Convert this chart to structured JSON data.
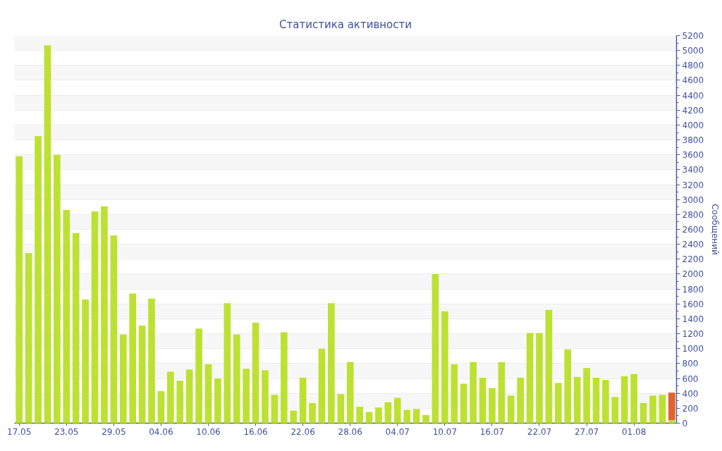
{
  "chart_data": {
    "type": "bar",
    "title": "Статистика активности",
    "ylabel": "Сообщений",
    "categories": [
      "17.05",
      null,
      null,
      null,
      null,
      "23.05",
      null,
      null,
      null,
      null,
      "29.05",
      null,
      null,
      null,
      null,
      "04.06",
      null,
      null,
      null,
      null,
      "10.06",
      null,
      null,
      null,
      null,
      "16.06",
      null,
      null,
      null,
      null,
      "22.06",
      null,
      null,
      null,
      null,
      "28.06",
      null,
      null,
      null,
      null,
      "04.07",
      null,
      null,
      null,
      null,
      "10.07",
      null,
      null,
      null,
      null,
      "16.07",
      null,
      null,
      null,
      null,
      "22.07",
      null,
      null,
      null,
      null,
      "27.07",
      null,
      null,
      null,
      null,
      "01.08",
      null,
      null,
      null,
      null
    ],
    "stacked": true,
    "series": [
      {
        "color": "#bde132",
        "values": [
          3580,
          2280,
          3850,
          5070,
          3600,
          2860,
          2550,
          1660,
          2840,
          2910,
          2520,
          1190,
          1740,
          1310,
          1670,
          430,
          690,
          570,
          720,
          1270,
          790,
          600,
          1610,
          1190,
          730,
          1350,
          710,
          380,
          1220,
          170,
          610,
          270,
          1000,
          1610,
          390,
          820,
          220,
          150,
          210,
          280,
          340,
          180,
          190,
          110,
          2000,
          1500,
          790,
          530,
          820,
          610,
          470,
          820,
          370,
          610,
          1210,
          1210,
          1520,
          540,
          990,
          620,
          740,
          610,
          580,
          350,
          630,
          660,
          270,
          370,
          380,
          40
        ]
      },
      {
        "color": "#e2632e",
        "values": [
          null,
          null,
          null,
          null,
          null,
          null,
          null,
          null,
          null,
          null,
          null,
          null,
          null,
          null,
          null,
          null,
          null,
          null,
          null,
          null,
          null,
          null,
          null,
          null,
          null,
          null,
          null,
          null,
          null,
          null,
          null,
          null,
          null,
          null,
          null,
          null,
          null,
          null,
          null,
          null,
          null,
          null,
          null,
          null,
          null,
          null,
          null,
          null,
          null,
          null,
          null,
          null,
          null,
          null,
          null,
          null,
          null,
          null,
          null,
          null,
          null,
          null,
          null,
          null,
          null,
          null,
          null,
          null,
          null,
          370
        ]
      }
    ],
    "ylim": [
      0,
      5200
    ],
    "yticks": [
      0,
      200,
      400,
      600,
      800,
      1000,
      1200,
      1400,
      1600,
      1800,
      2000,
      2200,
      2400,
      2600,
      2800,
      3000,
      3200,
      3400,
      3600,
      3800,
      4000,
      4200,
      4400,
      4600,
      4800,
      5000,
      5200
    ],
    "grid": "y"
  }
}
